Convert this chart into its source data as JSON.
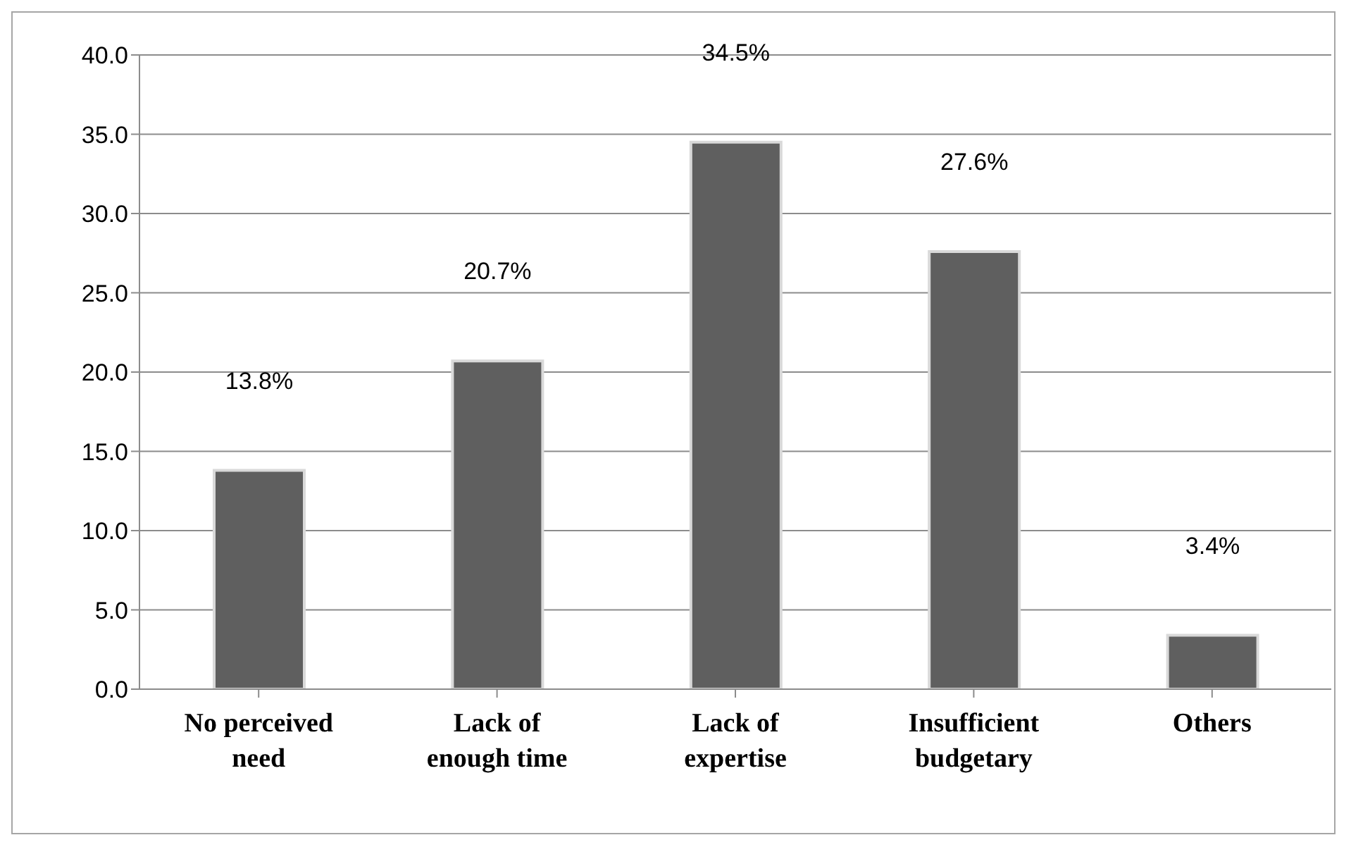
{
  "chart_data": {
    "type": "bar",
    "categories": [
      "No perceived need",
      "Lack of enough time",
      "Lack of expertise",
      "Insufficient budgetary",
      "Others"
    ],
    "values": [
      13.8,
      20.7,
      34.5,
      27.6,
      3.4
    ],
    "value_labels": [
      "13.8%",
      "20.7%",
      "34.5%",
      "27.6%",
      "3.4%"
    ],
    "color": "#5f5f5f",
    "ylim": [
      0,
      40
    ],
    "yticks": [
      {
        "value": 0,
        "label": "0.0"
      },
      {
        "value": 5,
        "label": "5.0"
      },
      {
        "value": 10,
        "label": "10.0"
      },
      {
        "value": 15,
        "label": "15.0"
      },
      {
        "value": 20,
        "label": "20.0"
      },
      {
        "value": 25,
        "label": "25.0"
      },
      {
        "value": 30,
        "label": "30.0"
      },
      {
        "value": 35,
        "label": "35.0"
      },
      {
        "value": 40,
        "label": "40.0"
      }
    ],
    "grid": "y"
  }
}
